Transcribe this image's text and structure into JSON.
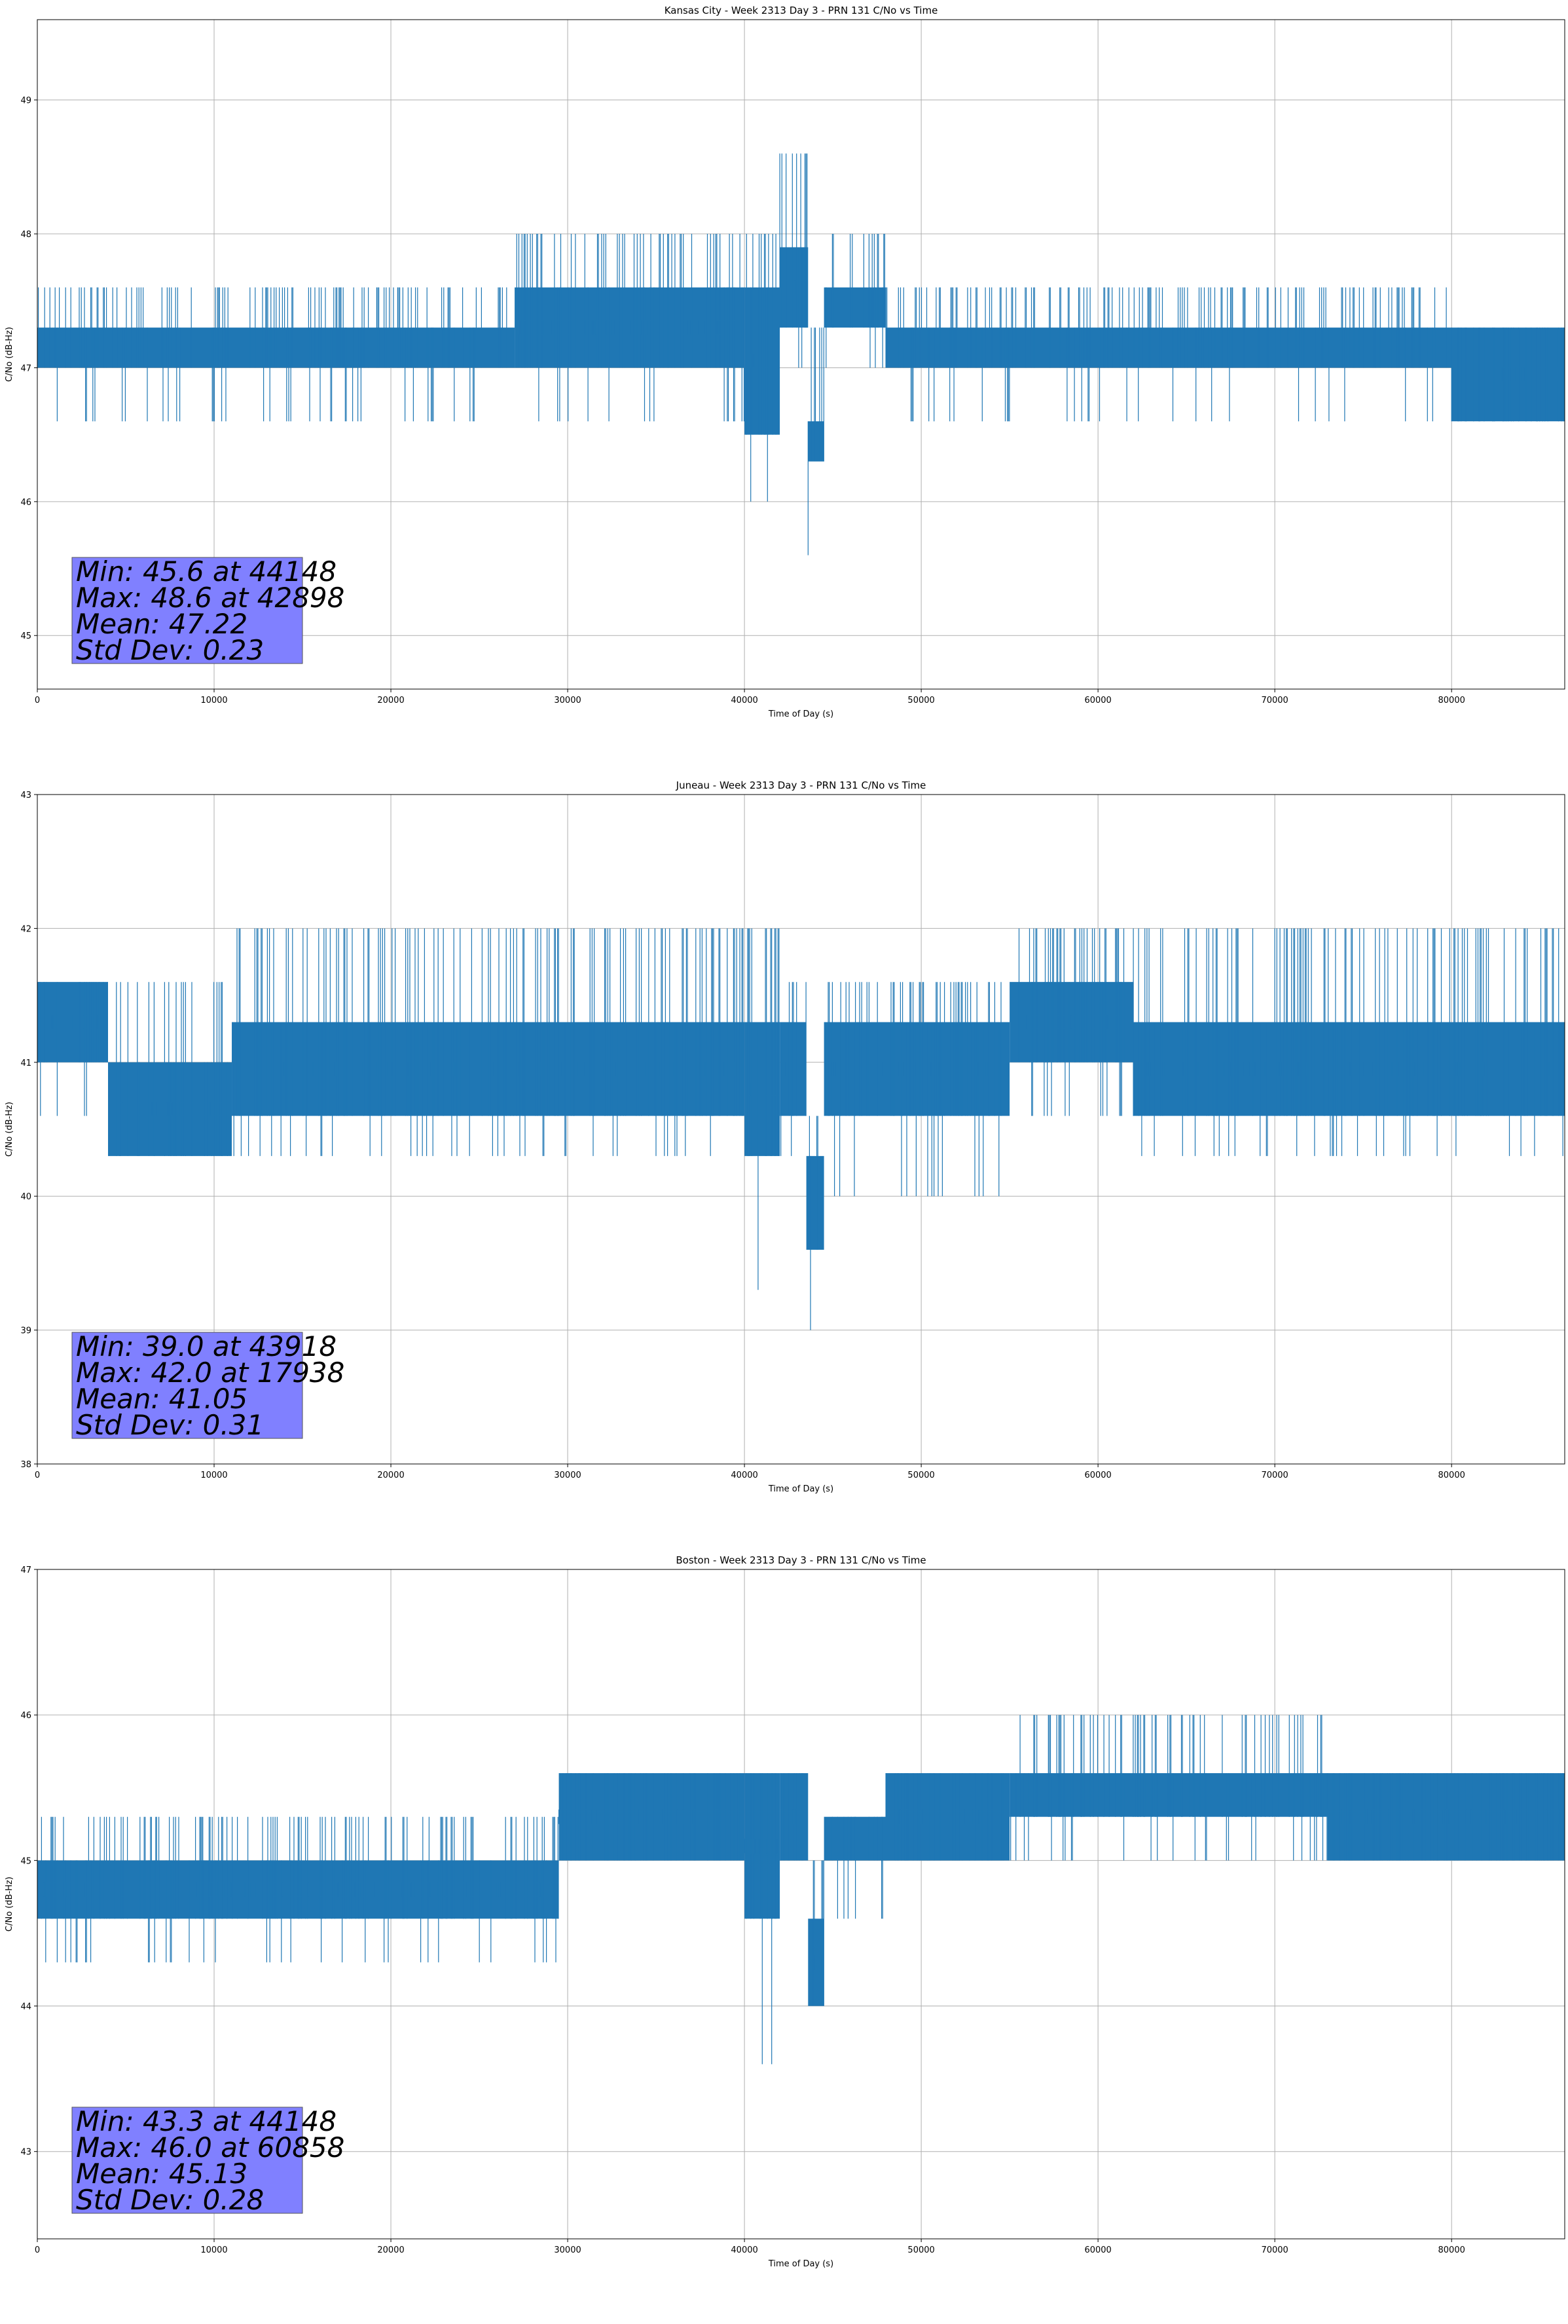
{
  "chart_data": [
    {
      "type": "line",
      "title": "Kansas City - Week 2313 Day 3 - PRN 131 C/No vs Time",
      "xlabel": "Time of Day (s)",
      "ylabel": "C/No (dB-Hz)",
      "xlim": [
        0,
        86400
      ],
      "ylim": [
        44.6,
        49.6
      ],
      "xticks": [
        0,
        10000,
        20000,
        30000,
        40000,
        50000,
        60000,
        70000,
        80000
      ],
      "yticks": [
        45,
        46,
        47,
        48,
        49
      ],
      "grid": true,
      "color": "#1f77b4",
      "stats": [
        "Min: 45.6 at 44148",
        "Max: 48.6 at 42898",
        "Mean: 47.22",
        "Std Dev: 0.23"
      ],
      "series": [
        {
          "name": "C/No",
          "segments": [
            {
              "x": [
                0,
                27000
              ],
              "low": 47.0,
              "high": 47.3,
              "spike_hi": 47.6,
              "spike_lo": 46.6
            },
            {
              "x": [
                27000,
                40000
              ],
              "low": 47.0,
              "high": 47.6,
              "spike_hi": 48.0,
              "spike_lo": 46.6
            },
            {
              "x": [
                40000,
                42000
              ],
              "low": 46.5,
              "high": 47.6,
              "spike_hi": 48.0,
              "spike_lo": 46.0
            },
            {
              "x": [
                42000,
                43600
              ],
              "low": 47.3,
              "high": 47.9,
              "spike_hi": 48.6,
              "spike_lo": 47.0
            },
            {
              "x": [
                43600,
                44500
              ],
              "low": 46.3,
              "high": 46.6,
              "spike_hi": 47.3,
              "spike_lo": 45.6
            },
            {
              "x": [
                44500,
                48000
              ],
              "low": 47.3,
              "high": 47.6,
              "spike_hi": 48.0,
              "spike_lo": 47.0
            },
            {
              "x": [
                48000,
                80000
              ],
              "low": 47.0,
              "high": 47.3,
              "spike_hi": 47.6,
              "spike_lo": 46.6
            },
            {
              "x": [
                80000,
                86400
              ],
              "low": 46.6,
              "high": 47.3,
              "spike_hi": 47.3,
              "spike_lo": 46.6
            }
          ]
        }
      ]
    },
    {
      "type": "line",
      "title": "Juneau - Week 2313 Day 3 - PRN 131 C/No vs Time",
      "xlabel": "Time of Day (s)",
      "ylabel": "C/No (dB-Hz)",
      "xlim": [
        0,
        86400
      ],
      "ylim": [
        38,
        43
      ],
      "xticks": [
        0,
        10000,
        20000,
        30000,
        40000,
        50000,
        60000,
        70000,
        80000
      ],
      "yticks": [
        38,
        39,
        40,
        41,
        42,
        43
      ],
      "grid": true,
      "color": "#1f77b4",
      "stats": [
        "Min: 39.0 at 43918",
        "Max: 42.0 at 17938",
        "Mean: 41.05",
        "Std Dev: 0.31"
      ],
      "series": [
        {
          "name": "C/No",
          "segments": [
            {
              "x": [
                0,
                4000
              ],
              "low": 41.0,
              "high": 41.6,
              "spike_hi": 41.6,
              "spike_lo": 40.6
            },
            {
              "x": [
                4000,
                11000
              ],
              "low": 40.3,
              "high": 41.0,
              "spike_hi": 41.6,
              "spike_lo": 40.3
            },
            {
              "x": [
                11000,
                40000
              ],
              "low": 40.6,
              "high": 41.3,
              "spike_hi": 42.0,
              "spike_lo": 40.3
            },
            {
              "x": [
                40000,
                42000
              ],
              "low": 40.3,
              "high": 41.3,
              "spike_hi": 42.0,
              "spike_lo": 39.3
            },
            {
              "x": [
                42000,
                43500
              ],
              "low": 40.6,
              "high": 41.3,
              "spike_hi": 41.6,
              "spike_lo": 40.3
            },
            {
              "x": [
                43500,
                44500
              ],
              "low": 39.6,
              "high": 40.3,
              "spike_hi": 40.6,
              "spike_lo": 39.0
            },
            {
              "x": [
                44500,
                55000
              ],
              "low": 40.6,
              "high": 41.3,
              "spike_hi": 41.6,
              "spike_lo": 40.0
            },
            {
              "x": [
                55000,
                62000
              ],
              "low": 41.0,
              "high": 41.6,
              "spike_hi": 42.0,
              "spike_lo": 40.6
            },
            {
              "x": [
                62000,
                86400
              ],
              "low": 40.6,
              "high": 41.3,
              "spike_hi": 42.0,
              "spike_lo": 40.3
            }
          ]
        }
      ]
    },
    {
      "type": "line",
      "title": "Boston - Week 2313 Day 3 - PRN 131 C/No vs Time",
      "xlabel": "Time of Day (s)",
      "ylabel": "C/No (dB-Hz)",
      "xlim": [
        0,
        86400
      ],
      "ylim": [
        42.4,
        47
      ],
      "xticks": [
        0,
        10000,
        20000,
        30000,
        40000,
        50000,
        60000,
        70000,
        80000
      ],
      "yticks": [
        43,
        44,
        45,
        46,
        47
      ],
      "grid": true,
      "color": "#1f77b4",
      "stats": [
        "Min: 43.3 at 44148",
        "Max: 46.0 at 60858",
        "Mean: 45.13",
        "Std Dev: 0.28"
      ],
      "series": [
        {
          "name": "C/No",
          "segments": [
            {
              "x": [
                0,
                29500
              ],
              "low": 44.6,
              "high": 45.0,
              "spike_hi": 45.3,
              "spike_lo": 44.3
            },
            {
              "x": [
                29500,
                40000
              ],
              "low": 45.0,
              "high": 45.6,
              "spike_hi": 45.6,
              "spike_lo": 45.0
            },
            {
              "x": [
                40000,
                42000
              ],
              "low": 44.6,
              "high": 45.6,
              "spike_hi": 45.6,
              "spike_lo": 43.6
            },
            {
              "x": [
                42000,
                43600
              ],
              "low": 45.0,
              "high": 45.6,
              "spike_hi": 45.6,
              "spike_lo": 45.0
            },
            {
              "x": [
                43600,
                44500
              ],
              "low": 44.0,
              "high": 44.6,
              "spike_hi": 45.0,
              "spike_lo": 43.3
            },
            {
              "x": [
                44500,
                48000
              ],
              "low": 45.0,
              "high": 45.3,
              "spike_hi": 45.3,
              "spike_lo": 44.6
            },
            {
              "x": [
                48000,
                55000
              ],
              "low": 45.0,
              "high": 45.6,
              "spike_hi": 45.6,
              "spike_lo": 45.0
            },
            {
              "x": [
                55000,
                73000
              ],
              "low": 45.3,
              "high": 45.6,
              "spike_hi": 46.0,
              "spike_lo": 45.0
            },
            {
              "x": [
                73000,
                86400
              ],
              "low": 45.0,
              "high": 45.6,
              "spike_hi": 45.6,
              "spike_lo": 45.0
            }
          ]
        }
      ]
    }
  ]
}
